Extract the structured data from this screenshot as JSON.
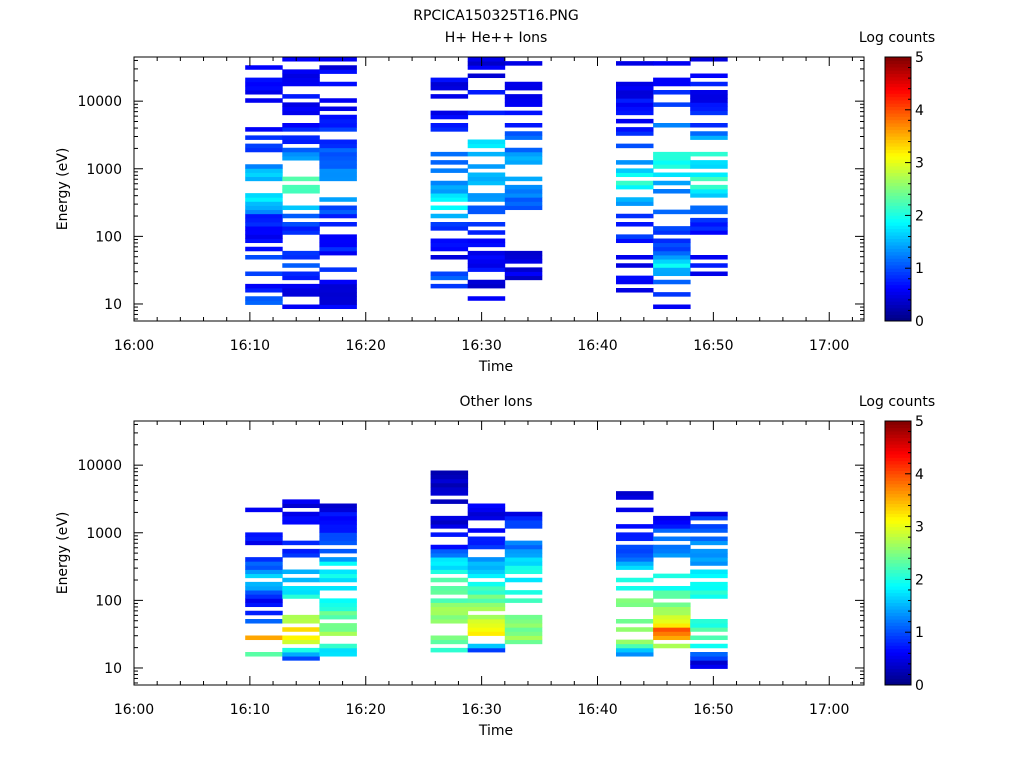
{
  "figure_title": "RPCICA150325T16.PNG",
  "chart_data": [
    {
      "type": "heatmap",
      "title": "H+ He++ Ions",
      "xlabel": "Time",
      "ylabel": "Energy (eV)",
      "x_ticks": [
        "16:00",
        "16:10",
        "16:20",
        "16:30",
        "16:40",
        "16:50",
        "17:00"
      ],
      "y_ticks": [
        "10",
        "100",
        "1000",
        "10000"
      ],
      "y_scale": "log",
      "ylim": [
        5.6,
        45000
      ],
      "xlim": [
        "16:00",
        "17:03"
      ],
      "colorbar": {
        "label": "Log counts",
        "ticks": [
          "0",
          "1",
          "2",
          "3",
          "4",
          "5"
        ],
        "range": [
          0,
          5
        ],
        "colormap": "jet"
      },
      "columns": [
        {
          "start": "16:09.6",
          "end": "16:12.8",
          "profile": [
            [
              10,
              1.2
            ],
            [
              17,
              0.6
            ],
            [
              25,
              0.7
            ],
            [
              40,
              0.9
            ],
            [
              60,
              0.6
            ],
            [
              100,
              0.5
            ],
            [
              200,
              0.7
            ],
            [
              300,
              1.5
            ],
            [
              500,
              1.6
            ],
            [
              1000,
              1.3
            ],
            [
              2000,
              0.8
            ],
            [
              5000,
              0.5
            ],
            [
              10000,
              0.5
            ],
            [
              20000,
              0.5
            ],
            [
              40000,
              0.4
            ]
          ],
          "gap": 0.45,
          "phase": 0
        },
        {
          "start": "16:12.8",
          "end": "16:16.0",
          "profile": [
            [
              10,
              0.45
            ],
            [
              15,
              0.45
            ],
            [
              25,
              0.7
            ],
            [
              40,
              0.9
            ],
            [
              60,
              0.7
            ],
            [
              100,
              0.5
            ],
            [
              200,
              0.9
            ],
            [
              350,
              1.8
            ],
            [
              500,
              2.2
            ],
            [
              800,
              2.0
            ],
            [
              1500,
              1.2
            ],
            [
              3000,
              0.6
            ],
            [
              10000,
              0.5
            ],
            [
              20000,
              0.5
            ],
            [
              40000,
              0.4
            ]
          ],
          "gap": 0.45,
          "phase": 1
        },
        {
          "start": "16:16.0",
          "end": "16:19.2",
          "profile": [
            [
              10,
              0.4
            ],
            [
              15,
              0.35
            ],
            [
              30,
              0.7
            ],
            [
              50,
              0.6
            ],
            [
              100,
              0.6
            ],
            [
              200,
              0.8
            ],
            [
              400,
              1.2
            ],
            [
              800,
              1.2
            ],
            [
              1500,
              1.0
            ],
            [
              3000,
              0.7
            ],
            [
              10000,
              0.5
            ],
            [
              20000,
              0.5
            ],
            [
              40000,
              0.4
            ]
          ],
          "gap": 0.4,
          "phase": 2
        },
        {
          "start": "16:25.6",
          "end": "16:28.8",
          "profile": [
            [
              18,
              0.6
            ],
            [
              25,
              1.0
            ],
            [
              40,
              0.5
            ],
            [
              80,
              0.4
            ],
            [
              150,
              0.7
            ],
            [
              300,
              1.9
            ],
            [
              500,
              1.3
            ],
            [
              1000,
              1.0
            ],
            [
              2000,
              1.1
            ],
            [
              5000,
              0.6
            ],
            [
              10000,
              0.4
            ],
            [
              20000,
              0.4
            ],
            [
              40000,
              0.3
            ]
          ],
          "gap": 0.45,
          "phase": 3
        },
        {
          "start": "16:28.8",
          "end": "16:32.0",
          "profile": [
            [
              10,
              0.3
            ],
            [
              25,
              0.4
            ],
            [
              50,
              0.5
            ],
            [
              100,
              0.4
            ],
            [
              200,
              0.9
            ],
            [
              400,
              1.3
            ],
            [
              800,
              1.4
            ],
            [
              1500,
              1.3
            ],
            [
              2000,
              1.8
            ],
            [
              5000,
              0.7
            ],
            [
              10000,
              0.5
            ],
            [
              20000,
              0.4
            ],
            [
              40000,
              0.3
            ]
          ],
          "gap": 0.45,
          "phase": 4
        },
        {
          "start": "16:32.0",
          "end": "16:35.2",
          "profile": [
            [
              28,
              0.35
            ],
            [
              40,
              0.4
            ],
            [
              60,
              0.4
            ],
            [
              120,
              0.4
            ],
            [
              250,
              0.7
            ],
            [
              500,
              1.2
            ],
            [
              1000,
              1.4
            ],
            [
              2000,
              1.1
            ],
            [
              5000,
              0.7
            ],
            [
              10000,
              0.5
            ],
            [
              20000,
              0.4
            ],
            [
              40000,
              0.3
            ]
          ],
          "gap": 0.4,
          "phase": 5
        },
        {
          "start": "16:41.6",
          "end": "16:44.8",
          "profile": [
            [
              10,
              0.3
            ],
            [
              18,
              0.4
            ],
            [
              30,
              0.5
            ],
            [
              60,
              0.4
            ],
            [
              100,
              0.7
            ],
            [
              200,
              0.6
            ],
            [
              400,
              1.6
            ],
            [
              700,
              2.0
            ],
            [
              1000,
              1.2
            ],
            [
              2000,
              0.9
            ],
            [
              4000,
              0.6
            ],
            [
              10000,
              0.5
            ],
            [
              20000,
              0.4
            ],
            [
              40000,
              0.4
            ]
          ],
          "gap": 0.45,
          "phase": 6
        },
        {
          "start": "16:44.8",
          "end": "16:48.0",
          "profile": [
            [
              10,
              0.4
            ],
            [
              25,
              1.0
            ],
            [
              40,
              1.8
            ],
            [
              60,
              0.8
            ],
            [
              100,
              0.6
            ],
            [
              200,
              0.9
            ],
            [
              400,
              1.1
            ],
            [
              800,
              1.6
            ],
            [
              1500,
              2.0
            ],
            [
              2500,
              2.3
            ],
            [
              5000,
              1.0
            ],
            [
              10000,
              0.6
            ],
            [
              20000,
              0.5
            ],
            [
              40000,
              0.4
            ]
          ],
          "gap": 0.45,
          "phase": 7
        },
        {
          "start": "16:48.0",
          "end": "16:51.2",
          "profile": [
            [
              25,
              0.5
            ],
            [
              40,
              0.6
            ],
            [
              80,
              0.5
            ],
            [
              150,
              0.6
            ],
            [
              300,
              1.0
            ],
            [
              600,
              2.2
            ],
            [
              1000,
              1.5
            ],
            [
              2000,
              1.9
            ],
            [
              4000,
              0.8
            ],
            [
              10000,
              0.5
            ],
            [
              20000,
              0.5
            ],
            [
              40000,
              0.4
            ]
          ],
          "gap": 0.45,
          "phase": 8
        }
      ]
    },
    {
      "type": "heatmap",
      "title": "Other Ions",
      "xlabel": "Time",
      "ylabel": "Energy (eV)",
      "x_ticks": [
        "16:00",
        "16:10",
        "16:20",
        "16:30",
        "16:40",
        "16:50",
        "17:00"
      ],
      "y_ticks": [
        "10",
        "100",
        "1000",
        "10000"
      ],
      "y_scale": "log",
      "ylim": [
        5.6,
        45000
      ],
      "xlim": [
        "16:00",
        "17:03"
      ],
      "colorbar": {
        "label": "Log counts",
        "ticks": [
          "0",
          "1",
          "2",
          "3",
          "4",
          "5"
        ],
        "range": [
          0,
          5
        ],
        "colormap": "jet"
      },
      "columns": [
        {
          "start": "16:09.6",
          "end": "16:12.8",
          "profile": [
            [
              16,
              2.2
            ],
            [
              20,
              2.6
            ],
            [
              27,
              3.5
            ],
            [
              35,
              2.7
            ],
            [
              50,
              0.8
            ],
            [
              100,
              0.5
            ],
            [
              150,
              1.2
            ],
            [
              200,
              1.6
            ],
            [
              300,
              1.0
            ],
            [
              500,
              0.5
            ],
            [
              2000,
              0.4
            ]
          ],
          "gap": 0.55,
          "phase": 0
        },
        {
          "start": "16:12.8",
          "end": "16:16.0",
          "profile": [
            [
              12,
              0.4
            ],
            [
              18,
              1.9
            ],
            [
              25,
              2.9
            ],
            [
              32,
              3.3
            ],
            [
              50,
              2.7
            ],
            [
              80,
              2.2
            ],
            [
              150,
              1.5
            ],
            [
              300,
              1.2
            ],
            [
              600,
              0.6
            ],
            [
              2500,
              0.4
            ]
          ],
          "gap": 0.45,
          "phase": 1
        },
        {
          "start": "16:16.0",
          "end": "16:19.2",
          "profile": [
            [
              18,
              1.7
            ],
            [
              25,
              2.4
            ],
            [
              40,
              2.6
            ],
            [
              80,
              2.0
            ],
            [
              150,
              1.7
            ],
            [
              300,
              1.8
            ],
            [
              500,
              1.2
            ],
            [
              600,
              1.0
            ],
            [
              3000,
              0.3
            ]
          ],
          "gap": 0.25,
          "phase": 2
        },
        {
          "start": "16:25.6",
          "end": "16:28.8",
          "profile": [
            [
              18,
              1.8
            ],
            [
              25,
              2.2
            ],
            [
              35,
              2.8
            ],
            [
              60,
              2.5
            ],
            [
              100,
              2.3
            ],
            [
              200,
              2.0
            ],
            [
              400,
              1.6
            ],
            [
              600,
              0.6
            ],
            [
              1500,
              0.4
            ],
            [
              7000,
              0.3
            ]
          ],
          "gap": 0.35,
          "phase": 3
        },
        {
          "start": "16:28.8",
          "end": "16:32.0",
          "profile": [
            [
              18,
              0.8
            ],
            [
              25,
              2.3
            ],
            [
              35,
              3.1
            ],
            [
              60,
              2.6
            ],
            [
              100,
              2.3
            ],
            [
              200,
              1.9
            ],
            [
              400,
              1.3
            ],
            [
              600,
              0.7
            ],
            [
              1300,
              0.5
            ],
            [
              3500,
              0.4
            ]
          ],
          "gap": 0.4,
          "phase": 4
        },
        {
          "start": "16:32.0",
          "end": "16:35.2",
          "profile": [
            [
              22,
              2.4
            ],
            [
              40,
              2.5
            ],
            [
              80,
              2.4
            ],
            [
              150,
              2.0
            ],
            [
              300,
              1.7
            ],
            [
              600,
              1.2
            ],
            [
              1000,
              1.0
            ],
            [
              1800,
              0.5
            ]
          ],
          "gap": 0.3,
          "phase": 5
        },
        {
          "start": "16:41.6",
          "end": "16:44.8",
          "profile": [
            [
              12,
              0.3
            ],
            [
              22,
              2.2
            ],
            [
              30,
              2.8
            ],
            [
              50,
              2.3
            ],
            [
              80,
              2.5
            ],
            [
              150,
              1.9
            ],
            [
              300,
              1.6
            ],
            [
              500,
              1.0
            ],
            [
              800,
              0.5
            ],
            [
              1400,
              0.4
            ],
            [
              4000,
              0.3
            ]
          ],
          "gap": 0.35,
          "phase": 6
        },
        {
          "start": "16:44.8",
          "end": "16:48.0",
          "profile": [
            [
              22,
              2.5
            ],
            [
              35,
              4.0
            ],
            [
              45,
              3.0
            ],
            [
              80,
              2.3
            ],
            [
              150,
              2.0
            ],
            [
              300,
              1.7
            ],
            [
              600,
              1.2
            ],
            [
              1000,
              1.0
            ],
            [
              1500,
              0.5
            ],
            [
              2000,
              0.6
            ],
            [
              3500,
              1.0
            ]
          ],
          "gap": 0.35,
          "phase": 7
        },
        {
          "start": "16:48.0",
          "end": "16:51.2",
          "profile": [
            [
              12,
              0.3
            ],
            [
              25,
              2.3
            ],
            [
              40,
              2.1
            ],
            [
              80,
              2.0
            ],
            [
              150,
              1.8
            ],
            [
              300,
              1.5
            ],
            [
              600,
              1.2
            ],
            [
              1000,
              1.0
            ],
            [
              1800,
              0.6
            ]
          ],
          "gap": 0.3,
          "phase": 8
        }
      ]
    }
  ]
}
